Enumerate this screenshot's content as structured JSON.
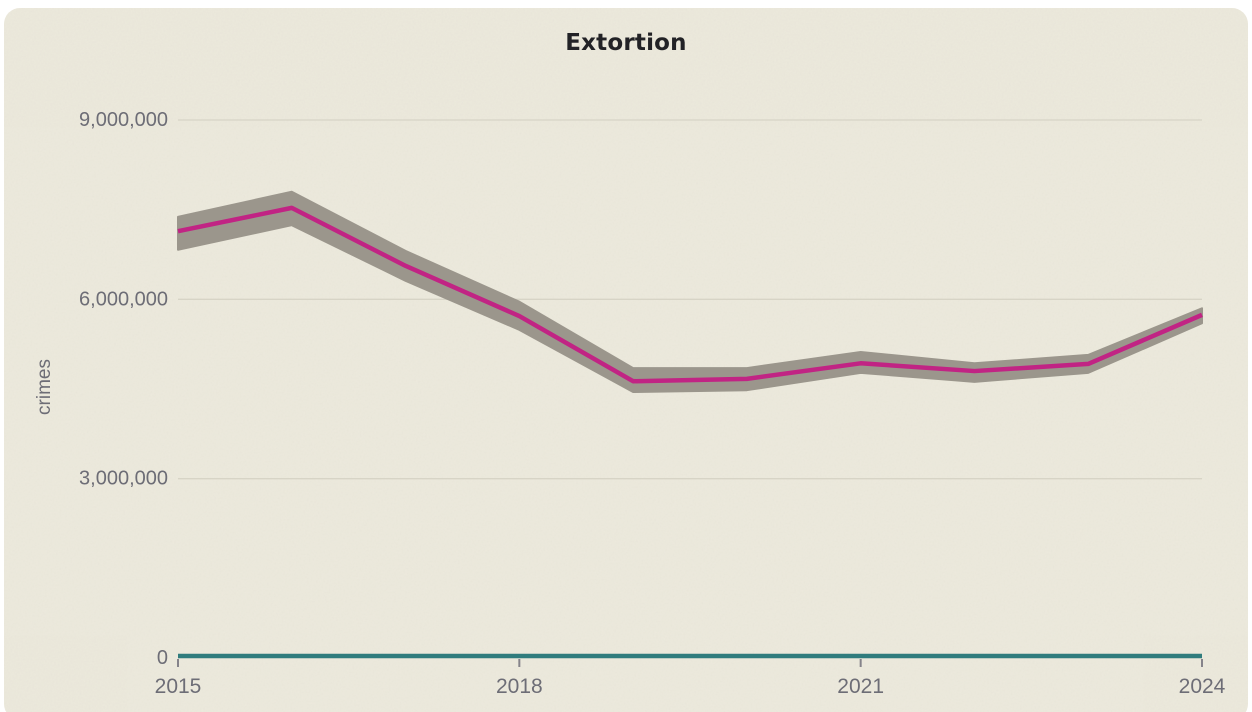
{
  "page": {
    "background_color": "#ffffff",
    "card_background_color": "#ece9dc"
  },
  "chart_data": {
    "type": "line",
    "title": "Extortion",
    "subtitle": "",
    "xlabel": "",
    "ylabel": "crimes",
    "x": [
      2015,
      2016,
      2017,
      2018,
      2019,
      2020,
      2021,
      2022,
      2023,
      2024
    ],
    "series": [
      {
        "name": "crimes",
        "style": "line",
        "color": "#c12484",
        "values": [
          7140000,
          7530000,
          6560000,
          5720000,
          4630000,
          4670000,
          4930000,
          4800000,
          4920000,
          5740000
        ]
      },
      {
        "name": "confidence-band",
        "style": "band",
        "color": "#9b968c",
        "upper": [
          7380000,
          7800000,
          6810000,
          5960000,
          4850000,
          4850000,
          5120000,
          4930000,
          5070000,
          5850000
        ],
        "lower": [
          6830000,
          7240000,
          6310000,
          5490000,
          4450000,
          4480000,
          4770000,
          4620000,
          4770000,
          5600000
        ]
      }
    ],
    "xlim": [
      2015,
      2024
    ],
    "ylim": [
      0,
      9000000
    ],
    "x_tick_values": [
      2015,
      2018,
      2021,
      2024
    ],
    "x_tick_labels": [
      "2015",
      "2018",
      "2021",
      "2024"
    ],
    "y_tick_values": [
      0,
      3000000,
      6000000,
      9000000
    ],
    "y_tick_labels": [
      "0",
      "3,000,000",
      "6,000,000",
      "9,000,000"
    ],
    "grid": "horizontal-only",
    "legend": "none",
    "colors": {
      "line": "#c12484",
      "band": "#9b968c",
      "baseline_axis": "#307c7d",
      "gridline": "#d7d4c6",
      "tick_mark": "#85838a",
      "tick_text": "#6d6d76",
      "title_text": "#222226"
    }
  }
}
